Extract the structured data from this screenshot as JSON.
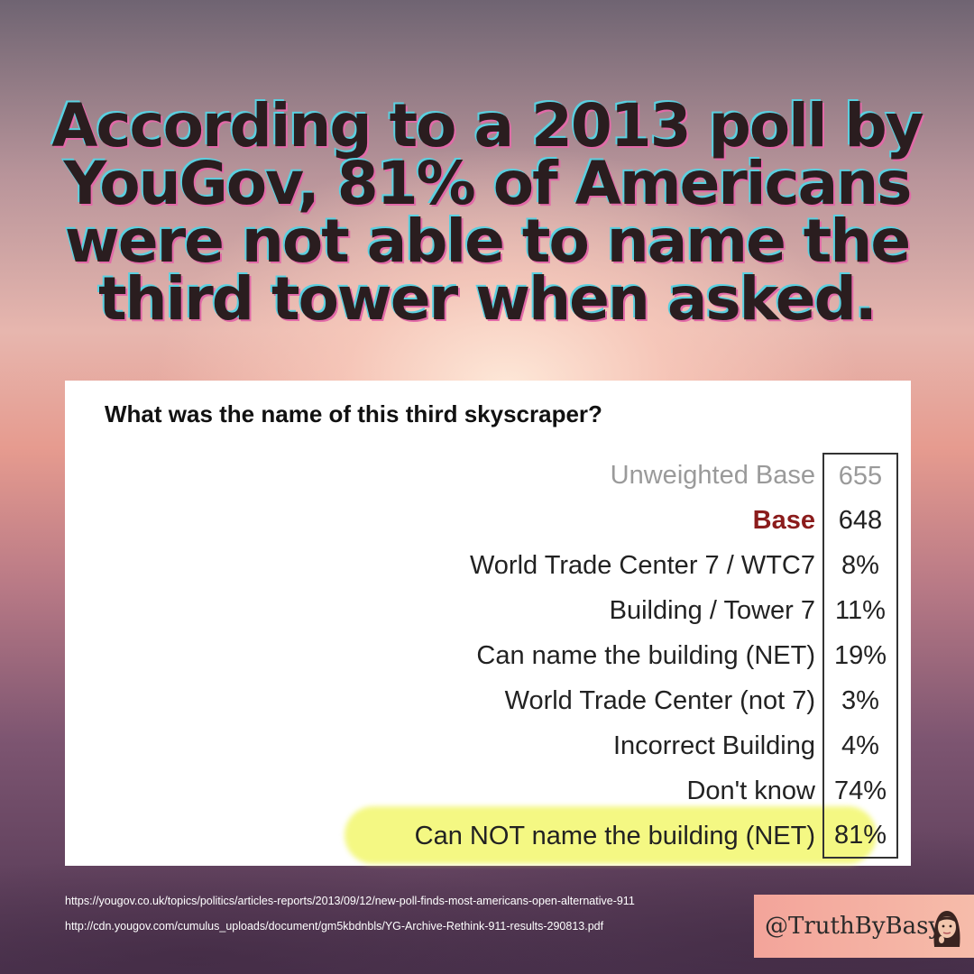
{
  "headline": "According to a 2013 poll by YouGov, 81% of Americans were not able to name the third tower when asked.",
  "table": {
    "question": "What was the name of this third skyscraper?",
    "rows": [
      {
        "label": "Unweighted Base",
        "value": "655"
      },
      {
        "label": "Base",
        "value": "648"
      },
      {
        "label": "World Trade Center 7 / WTC7",
        "value": "8%"
      },
      {
        "label": "Building / Tower 7",
        "value": "11%"
      },
      {
        "label": "Can name the building (NET)",
        "value": "19%"
      },
      {
        "label": "World Trade Center (not 7)",
        "value": "3%"
      },
      {
        "label": "Incorrect Building",
        "value": "4%"
      },
      {
        "label": "Don't know",
        "value": "74%"
      },
      {
        "label": "Can NOT name the building (NET)",
        "value": "81%"
      }
    ],
    "highlight_color": "#f0f55a",
    "base_color": "#8b1c1c"
  },
  "sources": [
    "https://yougov.co.uk/topics/politics/articles-reports/2013/09/12/new-poll-finds-most-americans-open-alternative-911",
    "http://cdn.yougov.com/cumulus_uploads/document/gm5kbdnbls/YG-Archive-Rethink-911-results-290813.pdf"
  ],
  "handle": "@TruthByBasya",
  "icons": {
    "avatar": "avatar-icon"
  }
}
